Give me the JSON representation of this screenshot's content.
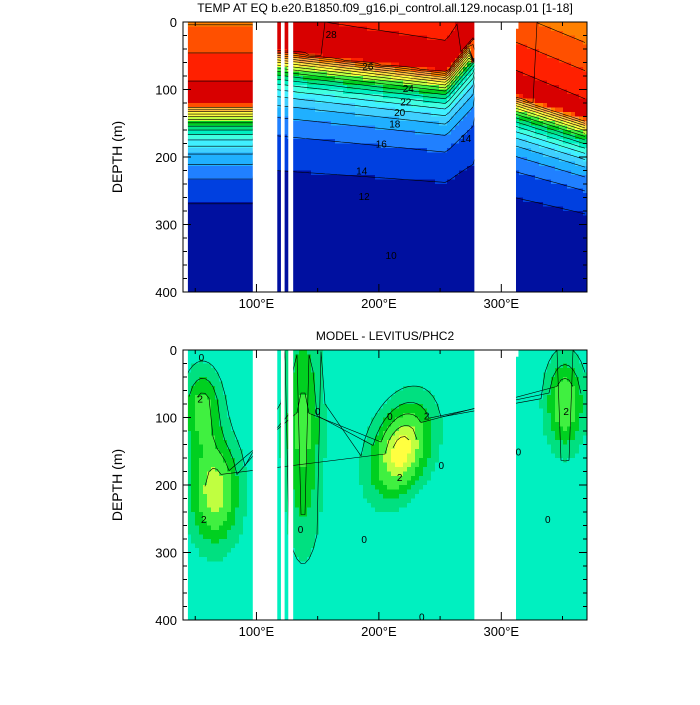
{
  "chart_data": [
    {
      "type": "contour",
      "title": "TEMP AT EQ b.e20.B1850.f09_g16.pi_control.all.129.nocasp.01 [1-18]",
      "ylabel": "DEPTH (m)",
      "x_axis": {
        "range": [
          40,
          370
        ],
        "tick_values": [
          100,
          200,
          300
        ],
        "tick_labels": [
          "100°E",
          "200°E",
          "300°E"
        ]
      },
      "y_axis": {
        "range": [
          0,
          400
        ],
        "inverted": true,
        "tick_values": [
          0,
          100,
          200,
          300,
          400
        ],
        "tick_labels": [
          "0",
          "100",
          "200",
          "300",
          "400"
        ]
      },
      "contour_labels": [
        {
          "value": "28",
          "x": 161,
          "depth": 18
        },
        {
          "value": "26",
          "x": 191,
          "depth": 65
        },
        {
          "value": "24",
          "x": 224,
          "depth": 98
        },
        {
          "value": "22",
          "x": 222,
          "depth": 118
        },
        {
          "value": "20",
          "x": 217,
          "depth": 133
        },
        {
          "value": "18",
          "x": 213,
          "depth": 150
        },
        {
          "value": "16",
          "x": 202,
          "depth": 180
        },
        {
          "value": "14",
          "x": 271,
          "depth": 172
        },
        {
          "value": "14",
          "x": 186,
          "depth": 220
        },
        {
          "value": "12",
          "x": 188,
          "depth": 258
        },
        {
          "value": "10",
          "x": 210,
          "depth": 345
        }
      ],
      "colors": {
        "27": "#d80000",
        "26": "#ff2000",
        "25": "#ff5000",
        "24": "#ff8000",
        "23": "#ffa040",
        "22": "#ffc040",
        "21": "#ffe040",
        "20": "#ffff40",
        "19": "#c0ff40",
        "18": "#40f040",
        "17": "#00d020",
        "16": "#00e080",
        "15": "#00f0c0",
        "14": "#40ffe0",
        "13": "#40f0ff",
        "12": "#40d0ff",
        "11": "#20b0ff",
        "10": "#2080ff",
        "9": "#0040e0",
        "8": "#0010a0"
      }
    },
    {
      "type": "contour",
      "title": "MODEL - LEVITUS/PHC2",
      "ylabel": "DEPTH (m)",
      "x_axis": {
        "range": [
          40,
          370
        ],
        "tick_values": [
          100,
          200,
          300
        ],
        "tick_labels": [
          "100°E",
          "200°E",
          "300°E"
        ]
      },
      "y_axis": {
        "range": [
          0,
          400
        ],
        "inverted": true,
        "tick_values": [
          0,
          100,
          200,
          300,
          400
        ],
        "tick_labels": [
          "0",
          "100",
          "200",
          "300",
          "400"
        ]
      },
      "contour_labels": [
        {
          "value": "0",
          "x": 55,
          "depth": 10
        },
        {
          "value": "2",
          "x": 54,
          "depth": 72
        },
        {
          "value": "2",
          "x": 57,
          "depth": 250
        },
        {
          "value": "0",
          "x": 136,
          "depth": 265
        },
        {
          "value": "0",
          "x": 150,
          "depth": 90
        },
        {
          "value": "0",
          "x": 188,
          "depth": 280
        },
        {
          "value": "0",
          "x": 209,
          "depth": 98
        },
        {
          "value": "2",
          "x": 239,
          "depth": 97
        },
        {
          "value": "0",
          "x": 251,
          "depth": 170
        },
        {
          "value": "2",
          "x": 217,
          "depth": 188
        },
        {
          "value": "0",
          "x": 235,
          "depth": 395
        },
        {
          "value": "0",
          "x": 314,
          "depth": 150
        },
        {
          "value": "0",
          "x": 338,
          "depth": 250
        },
        {
          "value": "2",
          "x": 353,
          "depth": 90
        }
      ],
      "colors": {
        "base": "#00f0c0",
        "d0": "#00e080",
        "d1": "#00d020",
        "d2": "#40f040",
        "d3": "#c0ff40",
        "d4": "#ffff40"
      }
    }
  ]
}
